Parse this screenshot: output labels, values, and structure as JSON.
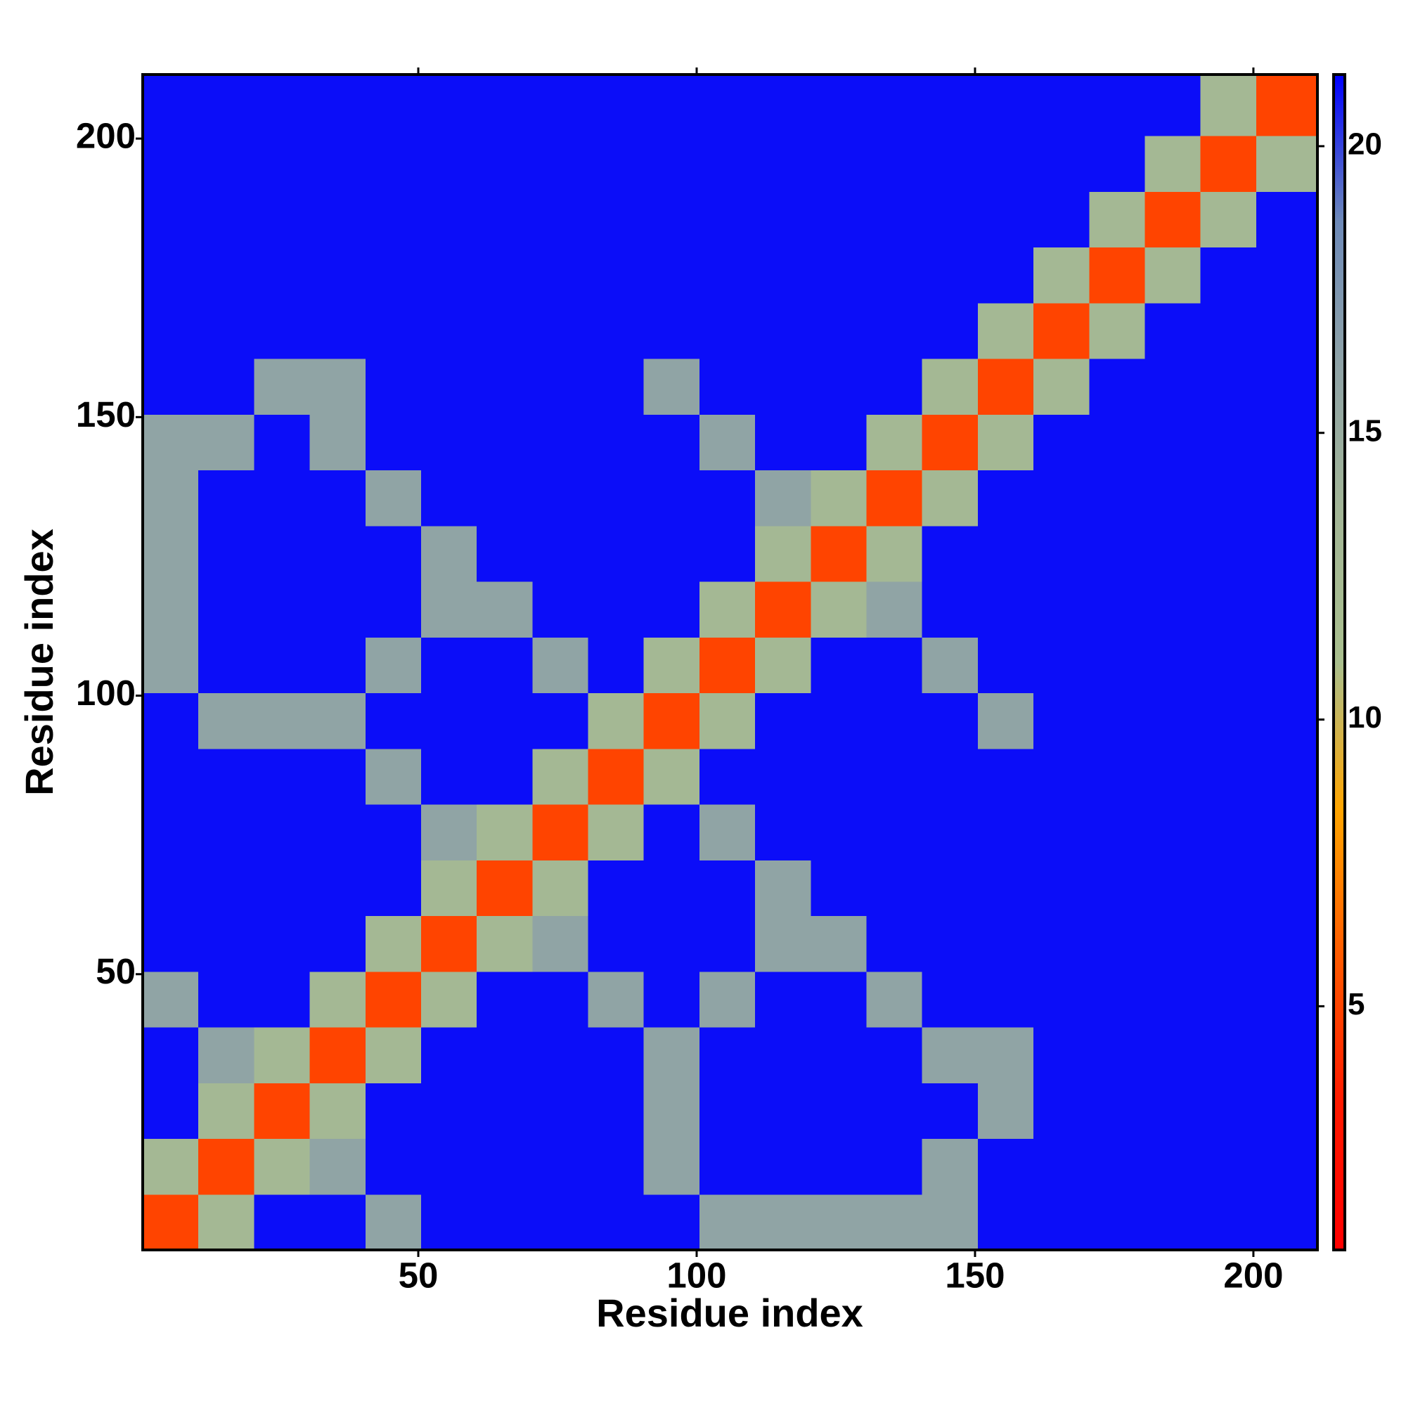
{
  "chart_data": {
    "type": "heatmap",
    "xlabel": "Residue index",
    "ylabel": "Residue index",
    "xlim": [
      0.5,
      211.5
    ],
    "ylim": [
      0.5,
      211.5
    ],
    "xticks": [
      50,
      100,
      150,
      200
    ],
    "yticks": [
      50,
      100,
      150,
      200
    ],
    "xbins": [
      0.5,
      10.5,
      20.5,
      30.5,
      40.5,
      50.5,
      60.5,
      70.5,
      80.5,
      90.5,
      100.5,
      110.5,
      120.5,
      130.5,
      140.5,
      150.5,
      160.5,
      170.5,
      180.5,
      190.5,
      200.5,
      211.5
    ],
    "ybins": [
      0.5,
      10.5,
      20.5,
      30.5,
      40.5,
      50.5,
      60.5,
      70.5,
      80.5,
      90.5,
      100.5,
      110.5,
      120.5,
      130.5,
      140.5,
      150.5,
      160.5,
      170.5,
      180.5,
      190.5,
      200.5,
      211.5
    ],
    "clim": [
      0.75,
      21.25
    ],
    "colorbar_ticks": [
      5,
      10,
      15,
      20
    ],
    "colors": [
      "#ff0000",
      "#ff1a00",
      "#ff5a00",
      "#ffa500",
      "#a9bf8e",
      "#a3b696",
      "#8fa3a6",
      "#6e8ab8",
      "#0000ff"
    ],
    "z": [
      [
        5,
        13,
        21,
        21,
        16,
        21,
        21,
        21,
        21,
        21,
        16,
        16,
        16,
        16,
        16,
        21,
        21,
        21,
        21,
        21,
        21
      ],
      [
        13,
        5,
        13,
        16,
        21,
        21,
        21,
        21,
        21,
        16,
        21,
        21,
        21,
        21,
        16,
        21,
        21,
        21,
        21,
        21,
        21
      ],
      [
        21,
        13,
        5,
        13,
        21,
        21,
        21,
        21,
        21,
        16,
        21,
        21,
        21,
        21,
        21,
        16,
        21,
        21,
        21,
        21,
        21
      ],
      [
        21,
        16,
        13,
        5,
        13,
        21,
        21,
        21,
        21,
        16,
        21,
        21,
        21,
        21,
        16,
        16,
        21,
        21,
        21,
        21,
        21
      ],
      [
        16,
        21,
        21,
        13,
        5,
        13,
        21,
        21,
        16,
        21,
        16,
        21,
        21,
        16,
        21,
        21,
        21,
        21,
        21,
        21,
        21
      ],
      [
        21,
        21,
        21,
        21,
        13,
        5,
        13,
        16,
        21,
        21,
        21,
        16,
        16,
        21,
        21,
        21,
        21,
        21,
        21,
        21,
        21
      ],
      [
        21,
        21,
        21,
        21,
        21,
        13,
        5,
        13,
        21,
        21,
        21,
        16,
        21,
        21,
        21,
        21,
        21,
        21,
        21,
        21,
        21
      ],
      [
        21,
        21,
        21,
        21,
        21,
        16,
        13,
        5,
        13,
        21,
        16,
        21,
        21,
        21,
        21,
        21,
        21,
        21,
        21,
        21,
        21
      ],
      [
        21,
        21,
        21,
        21,
        16,
        21,
        21,
        13,
        5,
        13,
        21,
        21,
        21,
        21,
        21,
        21,
        21,
        21,
        21,
        21,
        21
      ],
      [
        21,
        16,
        16,
        16,
        21,
        21,
        21,
        21,
        13,
        5,
        13,
        21,
        21,
        21,
        21,
        16,
        21,
        21,
        21,
        21,
        21
      ],
      [
        16,
        21,
        21,
        21,
        16,
        21,
        21,
        16,
        21,
        13,
        5,
        13,
        21,
        21,
        16,
        21,
        21,
        21,
        21,
        21,
        21
      ],
      [
        16,
        21,
        21,
        21,
        21,
        16,
        16,
        21,
        21,
        21,
        13,
        5,
        13,
        16,
        21,
        21,
        21,
        21,
        21,
        21,
        21
      ],
      [
        16,
        21,
        21,
        21,
        21,
        16,
        21,
        21,
        21,
        21,
        21,
        13,
        5,
        13,
        21,
        21,
        21,
        21,
        21,
        21,
        21
      ],
      [
        16,
        21,
        21,
        21,
        16,
        21,
        21,
        21,
        21,
        21,
        21,
        16,
        13,
        5,
        13,
        21,
        21,
        21,
        21,
        21,
        21
      ],
      [
        16,
        16,
        21,
        16,
        21,
        21,
        21,
        21,
        21,
        21,
        16,
        21,
        21,
        13,
        5,
        13,
        21,
        21,
        21,
        21,
        21
      ],
      [
        21,
        21,
        16,
        16,
        21,
        21,
        21,
        21,
        21,
        16,
        21,
        21,
        21,
        21,
        13,
        5,
        13,
        21,
        21,
        21,
        21
      ],
      [
        21,
        21,
        21,
        21,
        21,
        21,
        21,
        21,
        21,
        21,
        21,
        21,
        21,
        21,
        21,
        13,
        5,
        13,
        21,
        21,
        21
      ],
      [
        21,
        21,
        21,
        21,
        21,
        21,
        21,
        21,
        21,
        21,
        21,
        21,
        21,
        21,
        21,
        21,
        13,
        5,
        13,
        21,
        21
      ],
      [
        21,
        21,
        21,
        21,
        21,
        21,
        21,
        21,
        21,
        21,
        21,
        21,
        21,
        21,
        21,
        21,
        21,
        13,
        5,
        13,
        21
      ],
      [
        21,
        21,
        21,
        21,
        21,
        21,
        21,
        21,
        21,
        21,
        21,
        21,
        21,
        21,
        21,
        21,
        21,
        21,
        13,
        5,
        13
      ],
      [
        21,
        21,
        21,
        21,
        21,
        21,
        21,
        21,
        21,
        21,
        21,
        21,
        21,
        21,
        21,
        21,
        21,
        21,
        21,
        13,
        5
      ]
    ]
  }
}
